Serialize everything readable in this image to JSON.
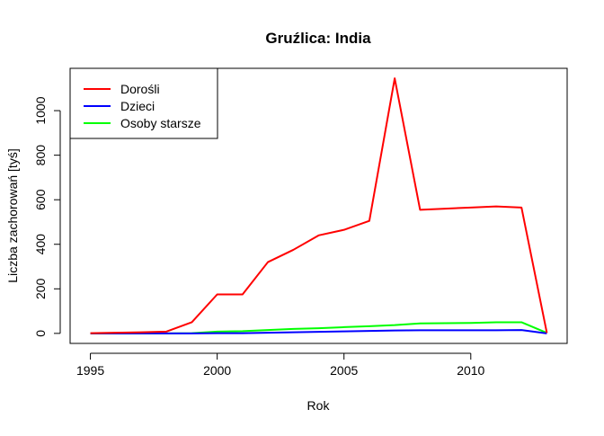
{
  "chart_data": {
    "type": "line",
    "title": "Gruźlica: India",
    "xlabel": "Rok",
    "ylabel": "Liczba zachorowań [tyś]",
    "xlim": [
      1994.2,
      2013.8
    ],
    "ylim": [
      -45,
      1190
    ],
    "x_ticks": [
      1995,
      2000,
      2005,
      2010
    ],
    "y_ticks": [
      0,
      200,
      400,
      600,
      800,
      1000
    ],
    "grid": false,
    "legend_position": "top-left",
    "x": [
      1995,
      1996,
      1997,
      1998,
      1999,
      2000,
      2001,
      2002,
      2003,
      2004,
      2005,
      2006,
      2007,
      2008,
      2009,
      2010,
      2011,
      2012,
      2013
    ],
    "series": [
      {
        "name": "Dorośli",
        "color": "#ff0000",
        "values": [
          1,
          3,
          5,
          8,
          50,
          175,
          175,
          320,
          375,
          440,
          465,
          505,
          1145,
          555,
          560,
          565,
          570,
          565,
          2
        ]
      },
      {
        "name": "Dzieci",
        "color": "#0000ff",
        "values": [
          0,
          0,
          0,
          0,
          0,
          1,
          1,
          3,
          5,
          7,
          9,
          11,
          13,
          14,
          14,
          14,
          14,
          15,
          0
        ]
      },
      {
        "name": "Osoby starsze",
        "color": "#00ff00",
        "values": [
          0,
          0,
          0,
          0,
          1,
          8,
          10,
          15,
          20,
          23,
          28,
          32,
          37,
          45,
          46,
          47,
          50,
          50,
          2
        ]
      }
    ]
  }
}
